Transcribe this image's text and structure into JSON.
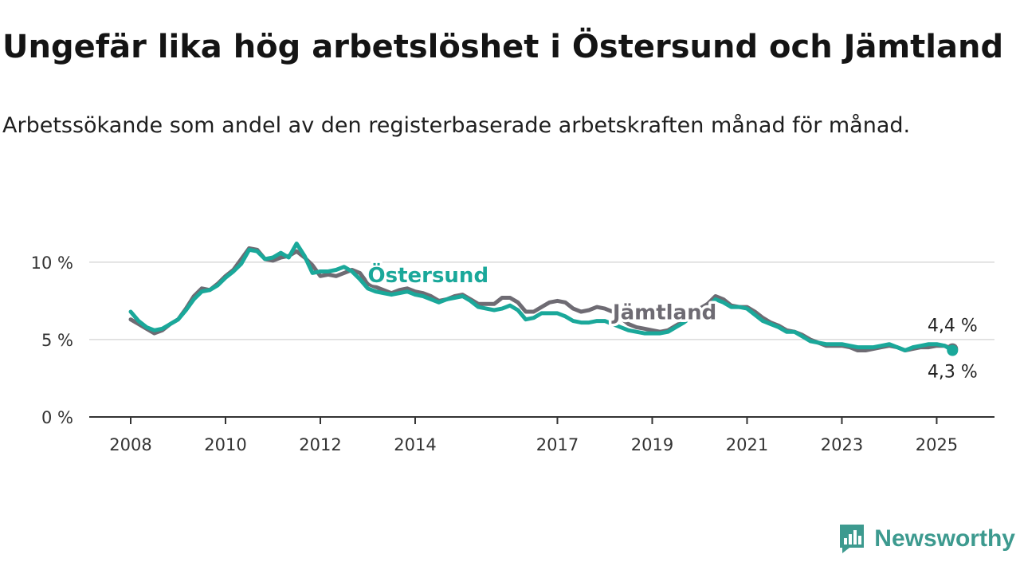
{
  "title": "Ungefär lika hög arbetslöshet i Östersund och Jämtland",
  "subtitle": "Arbetssökande som andel av den registerbaserade arbetskraften månad för månad.",
  "brand": {
    "name": "Newsworthy",
    "icon": "newsworthy-logo-icon",
    "color": "#3d9a8f"
  },
  "chart_data": {
    "type": "line",
    "xlim": [
      "2008-01",
      "2025-12"
    ],
    "ylim": [
      0,
      12
    ],
    "grid": true,
    "y_ticks": [
      {
        "value": 0,
        "label": "0 %"
      },
      {
        "value": 5,
        "label": "5 %"
      },
      {
        "value": 10,
        "label": "10 %"
      }
    ],
    "x_ticks": [
      {
        "value": "2008-01",
        "label": "2008"
      },
      {
        "value": "2010-01",
        "label": "2010"
      },
      {
        "value": "2012-01",
        "label": "2012"
      },
      {
        "value": "2014-01",
        "label": "2014"
      },
      {
        "value": "2017-01",
        "label": "2017"
      },
      {
        "value": "2019-01",
        "label": "2019"
      },
      {
        "value": "2021-01",
        "label": "2021"
      },
      {
        "value": "2023-01",
        "label": "2023"
      },
      {
        "value": "2025-01",
        "label": "2025"
      }
    ],
    "series": [
      {
        "name": "Jämtland",
        "color": "#6e6b73",
        "end_label": "4,4 %",
        "points": [
          [
            "2008-01",
            6.3
          ],
          [
            "2008-03",
            6.0
          ],
          [
            "2008-05",
            5.7
          ],
          [
            "2008-07",
            5.4
          ],
          [
            "2008-09",
            5.6
          ],
          [
            "2008-11",
            6.0
          ],
          [
            "2009-01",
            6.3
          ],
          [
            "2009-03",
            7.0
          ],
          [
            "2009-05",
            7.8
          ],
          [
            "2009-07",
            8.3
          ],
          [
            "2009-09",
            8.2
          ],
          [
            "2009-11",
            8.6
          ],
          [
            "2010-01",
            9.1
          ],
          [
            "2010-03",
            9.5
          ],
          [
            "2010-05",
            10.2
          ],
          [
            "2010-07",
            10.9
          ],
          [
            "2010-09",
            10.8
          ],
          [
            "2010-11",
            10.2
          ],
          [
            "2011-01",
            10.1
          ],
          [
            "2011-03",
            10.3
          ],
          [
            "2011-05",
            10.4
          ],
          [
            "2011-07",
            10.7
          ],
          [
            "2011-09",
            10.3
          ],
          [
            "2011-11",
            9.8
          ],
          [
            "2012-01",
            9.1
          ],
          [
            "2012-03",
            9.2
          ],
          [
            "2012-05",
            9.1
          ],
          [
            "2012-07",
            9.3
          ],
          [
            "2012-09",
            9.5
          ],
          [
            "2012-11",
            9.3
          ],
          [
            "2013-01",
            8.6
          ],
          [
            "2013-03",
            8.4
          ],
          [
            "2013-05",
            8.2
          ],
          [
            "2013-07",
            8.0
          ],
          [
            "2013-09",
            8.2
          ],
          [
            "2013-11",
            8.3
          ],
          [
            "2014-01",
            8.1
          ],
          [
            "2014-03",
            8.0
          ],
          [
            "2014-05",
            7.8
          ],
          [
            "2014-07",
            7.5
          ],
          [
            "2014-09",
            7.6
          ],
          [
            "2014-11",
            7.8
          ],
          [
            "2015-01",
            7.9
          ],
          [
            "2015-03",
            7.6
          ],
          [
            "2015-05",
            7.3
          ],
          [
            "2015-07",
            7.3
          ],
          [
            "2015-09",
            7.3
          ],
          [
            "2015-11",
            7.7
          ],
          [
            "2016-01",
            7.7
          ],
          [
            "2016-03",
            7.4
          ],
          [
            "2016-05",
            6.8
          ],
          [
            "2016-07",
            6.8
          ],
          [
            "2016-09",
            7.1
          ],
          [
            "2016-11",
            7.4
          ],
          [
            "2017-01",
            7.5
          ],
          [
            "2017-03",
            7.4
          ],
          [
            "2017-05",
            7.0
          ],
          [
            "2017-07",
            6.8
          ],
          [
            "2017-09",
            6.9
          ],
          [
            "2017-11",
            7.1
          ],
          [
            "2018-01",
            7.0
          ],
          [
            "2018-03",
            6.8
          ],
          [
            "2018-05",
            6.4
          ],
          [
            "2018-07",
            6.0
          ],
          [
            "2018-09",
            5.8
          ],
          [
            "2018-11",
            5.7
          ],
          [
            "2019-01",
            5.6
          ],
          [
            "2019-03",
            5.5
          ],
          [
            "2019-05",
            5.6
          ],
          [
            "2019-07",
            5.9
          ],
          [
            "2019-09",
            6.2
          ],
          [
            "2019-11",
            6.6
          ],
          [
            "2020-01",
            7.0
          ],
          [
            "2020-03",
            7.3
          ],
          [
            "2020-05",
            7.8
          ],
          [
            "2020-07",
            7.6
          ],
          [
            "2020-09",
            7.2
          ],
          [
            "2020-11",
            7.1
          ],
          [
            "2021-01",
            7.1
          ],
          [
            "2021-03",
            6.8
          ],
          [
            "2021-05",
            6.4
          ],
          [
            "2021-07",
            6.1
          ],
          [
            "2021-09",
            5.9
          ],
          [
            "2021-11",
            5.6
          ],
          [
            "2022-01",
            5.5
          ],
          [
            "2022-03",
            5.3
          ],
          [
            "2022-05",
            5.0
          ],
          [
            "2022-07",
            4.8
          ],
          [
            "2022-09",
            4.6
          ],
          [
            "2022-11",
            4.6
          ],
          [
            "2023-01",
            4.6
          ],
          [
            "2023-03",
            4.5
          ],
          [
            "2023-05",
            4.3
          ],
          [
            "2023-07",
            4.3
          ],
          [
            "2023-09",
            4.4
          ],
          [
            "2023-11",
            4.5
          ],
          [
            "2024-01",
            4.6
          ],
          [
            "2024-03",
            4.5
          ],
          [
            "2024-05",
            4.3
          ],
          [
            "2024-07",
            4.4
          ],
          [
            "2024-09",
            4.5
          ],
          [
            "2024-11",
            4.5
          ],
          [
            "2025-01",
            4.6
          ],
          [
            "2025-03",
            4.6
          ],
          [
            "2025-05",
            4.4
          ]
        ]
      },
      {
        "name": "Östersund",
        "color": "#1aa89a",
        "end_label": "4,3 %",
        "points": [
          [
            "2008-01",
            6.8
          ],
          [
            "2008-03",
            6.2
          ],
          [
            "2008-05",
            5.8
          ],
          [
            "2008-07",
            5.6
          ],
          [
            "2008-09",
            5.7
          ],
          [
            "2008-11",
            6.0
          ],
          [
            "2009-01",
            6.3
          ],
          [
            "2009-03",
            6.9
          ],
          [
            "2009-05",
            7.6
          ],
          [
            "2009-07",
            8.1
          ],
          [
            "2009-09",
            8.2
          ],
          [
            "2009-11",
            8.5
          ],
          [
            "2010-01",
            9.0
          ],
          [
            "2010-03",
            9.4
          ],
          [
            "2010-05",
            9.9
          ],
          [
            "2010-07",
            10.8
          ],
          [
            "2010-09",
            10.7
          ],
          [
            "2010-11",
            10.2
          ],
          [
            "2011-01",
            10.3
          ],
          [
            "2011-03",
            10.6
          ],
          [
            "2011-05",
            10.3
          ],
          [
            "2011-07",
            11.2
          ],
          [
            "2011-09",
            10.4
          ],
          [
            "2011-11",
            9.3
          ],
          [
            "2012-01",
            9.4
          ],
          [
            "2012-03",
            9.4
          ],
          [
            "2012-05",
            9.5
          ],
          [
            "2012-07",
            9.7
          ],
          [
            "2012-09",
            9.4
          ],
          [
            "2012-11",
            8.9
          ],
          [
            "2013-01",
            8.3
          ],
          [
            "2013-03",
            8.1
          ],
          [
            "2013-05",
            8.0
          ],
          [
            "2013-07",
            7.9
          ],
          [
            "2013-09",
            8.0
          ],
          [
            "2013-11",
            8.1
          ],
          [
            "2014-01",
            7.9
          ],
          [
            "2014-03",
            7.8
          ],
          [
            "2014-05",
            7.6
          ],
          [
            "2014-07",
            7.4
          ],
          [
            "2014-09",
            7.6
          ],
          [
            "2014-11",
            7.7
          ],
          [
            "2015-01",
            7.8
          ],
          [
            "2015-03",
            7.5
          ],
          [
            "2015-05",
            7.1
          ],
          [
            "2015-07",
            7.0
          ],
          [
            "2015-09",
            6.9
          ],
          [
            "2015-11",
            7.0
          ],
          [
            "2016-01",
            7.2
          ],
          [
            "2016-03",
            6.9
          ],
          [
            "2016-05",
            6.3
          ],
          [
            "2016-07",
            6.4
          ],
          [
            "2016-09",
            6.7
          ],
          [
            "2016-11",
            6.7
          ],
          [
            "2017-01",
            6.7
          ],
          [
            "2017-03",
            6.5
          ],
          [
            "2017-05",
            6.2
          ],
          [
            "2017-07",
            6.1
          ],
          [
            "2017-09",
            6.1
          ],
          [
            "2017-11",
            6.2
          ],
          [
            "2018-01",
            6.2
          ],
          [
            "2018-03",
            6.0
          ],
          [
            "2018-05",
            5.8
          ],
          [
            "2018-07",
            5.6
          ],
          [
            "2018-09",
            5.5
          ],
          [
            "2018-11",
            5.4
          ],
          [
            "2019-01",
            5.4
          ],
          [
            "2019-03",
            5.4
          ],
          [
            "2019-05",
            5.5
          ],
          [
            "2019-07",
            5.8
          ],
          [
            "2019-09",
            6.1
          ],
          [
            "2019-11",
            6.5
          ],
          [
            "2020-01",
            6.9
          ],
          [
            "2020-03",
            7.0
          ],
          [
            "2020-05",
            7.6
          ],
          [
            "2020-07",
            7.4
          ],
          [
            "2020-09",
            7.1
          ],
          [
            "2020-11",
            7.1
          ],
          [
            "2021-01",
            7.0
          ],
          [
            "2021-03",
            6.6
          ],
          [
            "2021-05",
            6.2
          ],
          [
            "2021-07",
            6.0
          ],
          [
            "2021-09",
            5.8
          ],
          [
            "2021-11",
            5.5
          ],
          [
            "2022-01",
            5.5
          ],
          [
            "2022-03",
            5.2
          ],
          [
            "2022-05",
            4.9
          ],
          [
            "2022-07",
            4.8
          ],
          [
            "2022-09",
            4.7
          ],
          [
            "2022-11",
            4.7
          ],
          [
            "2023-01",
            4.7
          ],
          [
            "2023-03",
            4.6
          ],
          [
            "2023-05",
            4.5
          ],
          [
            "2023-07",
            4.5
          ],
          [
            "2023-09",
            4.5
          ],
          [
            "2023-11",
            4.6
          ],
          [
            "2024-01",
            4.7
          ],
          [
            "2024-03",
            4.5
          ],
          [
            "2024-05",
            4.3
          ],
          [
            "2024-07",
            4.5
          ],
          [
            "2024-09",
            4.6
          ],
          [
            "2024-11",
            4.7
          ],
          [
            "2025-01",
            4.7
          ],
          [
            "2025-03",
            4.6
          ],
          [
            "2025-05",
            4.3
          ]
        ]
      }
    ],
    "series_labels": [
      {
        "series": "Östersund",
        "text": "Östersund",
        "at": [
          "2013-01",
          8.7
        ],
        "anchor": "start"
      },
      {
        "series": "Jämtland",
        "text": "Jämtland",
        "at": [
          "2018-03",
          6.3
        ],
        "anchor": "start"
      }
    ]
  }
}
